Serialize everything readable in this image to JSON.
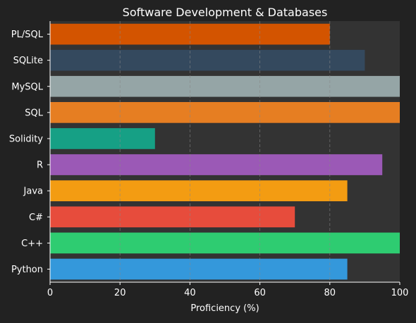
{
  "chart_data": {
    "type": "bar",
    "orientation": "horizontal",
    "title": "Software Development & Databases",
    "xlabel": "Proficiency (%)",
    "ylabel": "",
    "xlim": [
      0,
      100
    ],
    "xticks": [
      0,
      20,
      40,
      60,
      80,
      100
    ],
    "grid": "vertical dashed",
    "categories": [
      "Python",
      "C++",
      "C#",
      "Java",
      "R",
      "Solidity",
      "SQL",
      "MySQL",
      "SQLite",
      "PL/SQL"
    ],
    "values": [
      85,
      100,
      70,
      85,
      95,
      30,
      100,
      100,
      90,
      80
    ],
    "colors": [
      "#3498db",
      "#2ecc71",
      "#e74c3c",
      "#f39c12",
      "#9b59b6",
      "#16a085",
      "#e67e22",
      "#95a5a6",
      "#34495e",
      "#d35400"
    ]
  },
  "theme": {
    "background": "#222222",
    "plot_background": "#333333",
    "text_color": "#ffffff",
    "grid_color": "#888888"
  }
}
